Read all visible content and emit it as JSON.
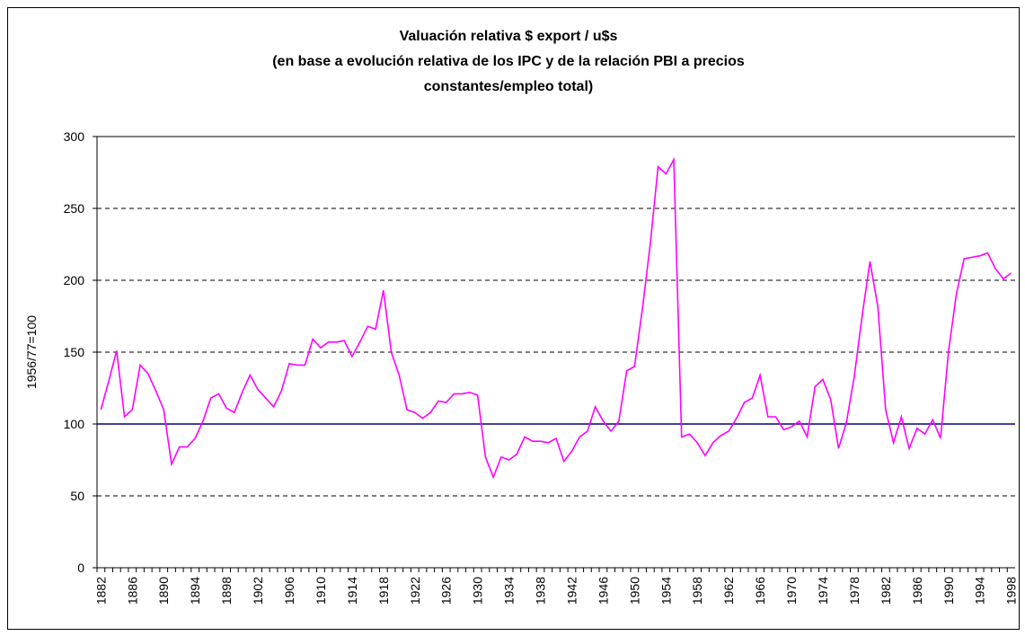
{
  "chart_data": {
    "type": "line",
    "title": [
      "Valuación relativa $ export / u$s",
      "(en base a evolución relativa de los IPC y de la relación PBI a precios",
      "constantes/empleo total)"
    ],
    "y_label": "1956/77=100",
    "x": [
      1882,
      1883,
      1884,
      1885,
      1886,
      1887,
      1888,
      1889,
      1890,
      1891,
      1892,
      1893,
      1894,
      1895,
      1896,
      1897,
      1898,
      1899,
      1900,
      1901,
      1902,
      1903,
      1904,
      1905,
      1906,
      1907,
      1908,
      1909,
      1910,
      1911,
      1912,
      1913,
      1914,
      1915,
      1916,
      1917,
      1918,
      1919,
      1920,
      1921,
      1922,
      1923,
      1924,
      1925,
      1926,
      1927,
      1928,
      1929,
      1930,
      1931,
      1932,
      1933,
      1934,
      1935,
      1936,
      1937,
      1938,
      1939,
      1940,
      1941,
      1942,
      1943,
      1944,
      1945,
      1946,
      1947,
      1948,
      1949,
      1950,
      1951,
      1952,
      1953,
      1954,
      1955,
      1956,
      1957,
      1958,
      1959,
      1960,
      1961,
      1962,
      1963,
      1964,
      1965,
      1966,
      1967,
      1968,
      1969,
      1970,
      1971,
      1972,
      1973,
      1974,
      1975,
      1976,
      1977,
      1978,
      1979,
      1980,
      1981,
      1982,
      1983,
      1984,
      1985,
      1986,
      1987,
      1988,
      1989,
      1990,
      1991,
      1992,
      1993,
      1994,
      1995,
      1996,
      1997,
      1998
    ],
    "series": [
      {
        "color": "#ff00ff",
        "values": [
          110,
          130,
          151,
          105,
          110,
          141,
          135,
          123,
          110,
          72,
          84,
          84,
          90,
          102,
          118,
          121,
          111,
          108,
          122,
          134,
          124,
          118,
          112,
          123,
          142,
          141,
          141,
          159,
          153,
          157,
          157,
          158,
          147,
          157,
          168,
          166,
          193,
          150,
          134,
          110,
          108,
          104,
          108,
          116,
          115,
          121,
          121,
          122,
          120,
          77,
          63,
          77,
          75,
          79,
          91,
          88,
          88,
          87,
          90,
          74,
          81,
          91,
          95,
          112,
          102,
          95,
          102,
          137,
          140,
          180,
          225,
          279,
          274,
          284,
          91,
          93,
          87,
          78,
          87,
          92,
          95,
          104,
          115,
          118,
          134,
          105,
          105,
          96,
          98,
          102,
          91,
          126,
          131,
          117,
          83,
          101,
          133,
          175,
          213,
          182,
          110,
          87,
          105,
          83,
          97,
          93,
          103,
          90,
          150,
          190,
          215,
          216,
          217,
          219,
          208,
          201,
          205
        ]
      }
    ],
    "reference_line": {
      "value": 100,
      "color": "#000080"
    },
    "xlim": [
      1881.5,
      1998.5
    ],
    "xticks": [
      1882,
      1886,
      1890,
      1894,
      1898,
      1902,
      1906,
      1910,
      1914,
      1918,
      1922,
      1926,
      1930,
      1934,
      1938,
      1942,
      1946,
      1950,
      1954,
      1958,
      1962,
      1966,
      1970,
      1974,
      1978,
      1982,
      1986,
      1990,
      1994,
      1998
    ],
    "ylim": [
      0,
      300
    ],
    "yticks": [
      0,
      50,
      100,
      150,
      200,
      250,
      300
    ],
    "grid": true
  }
}
